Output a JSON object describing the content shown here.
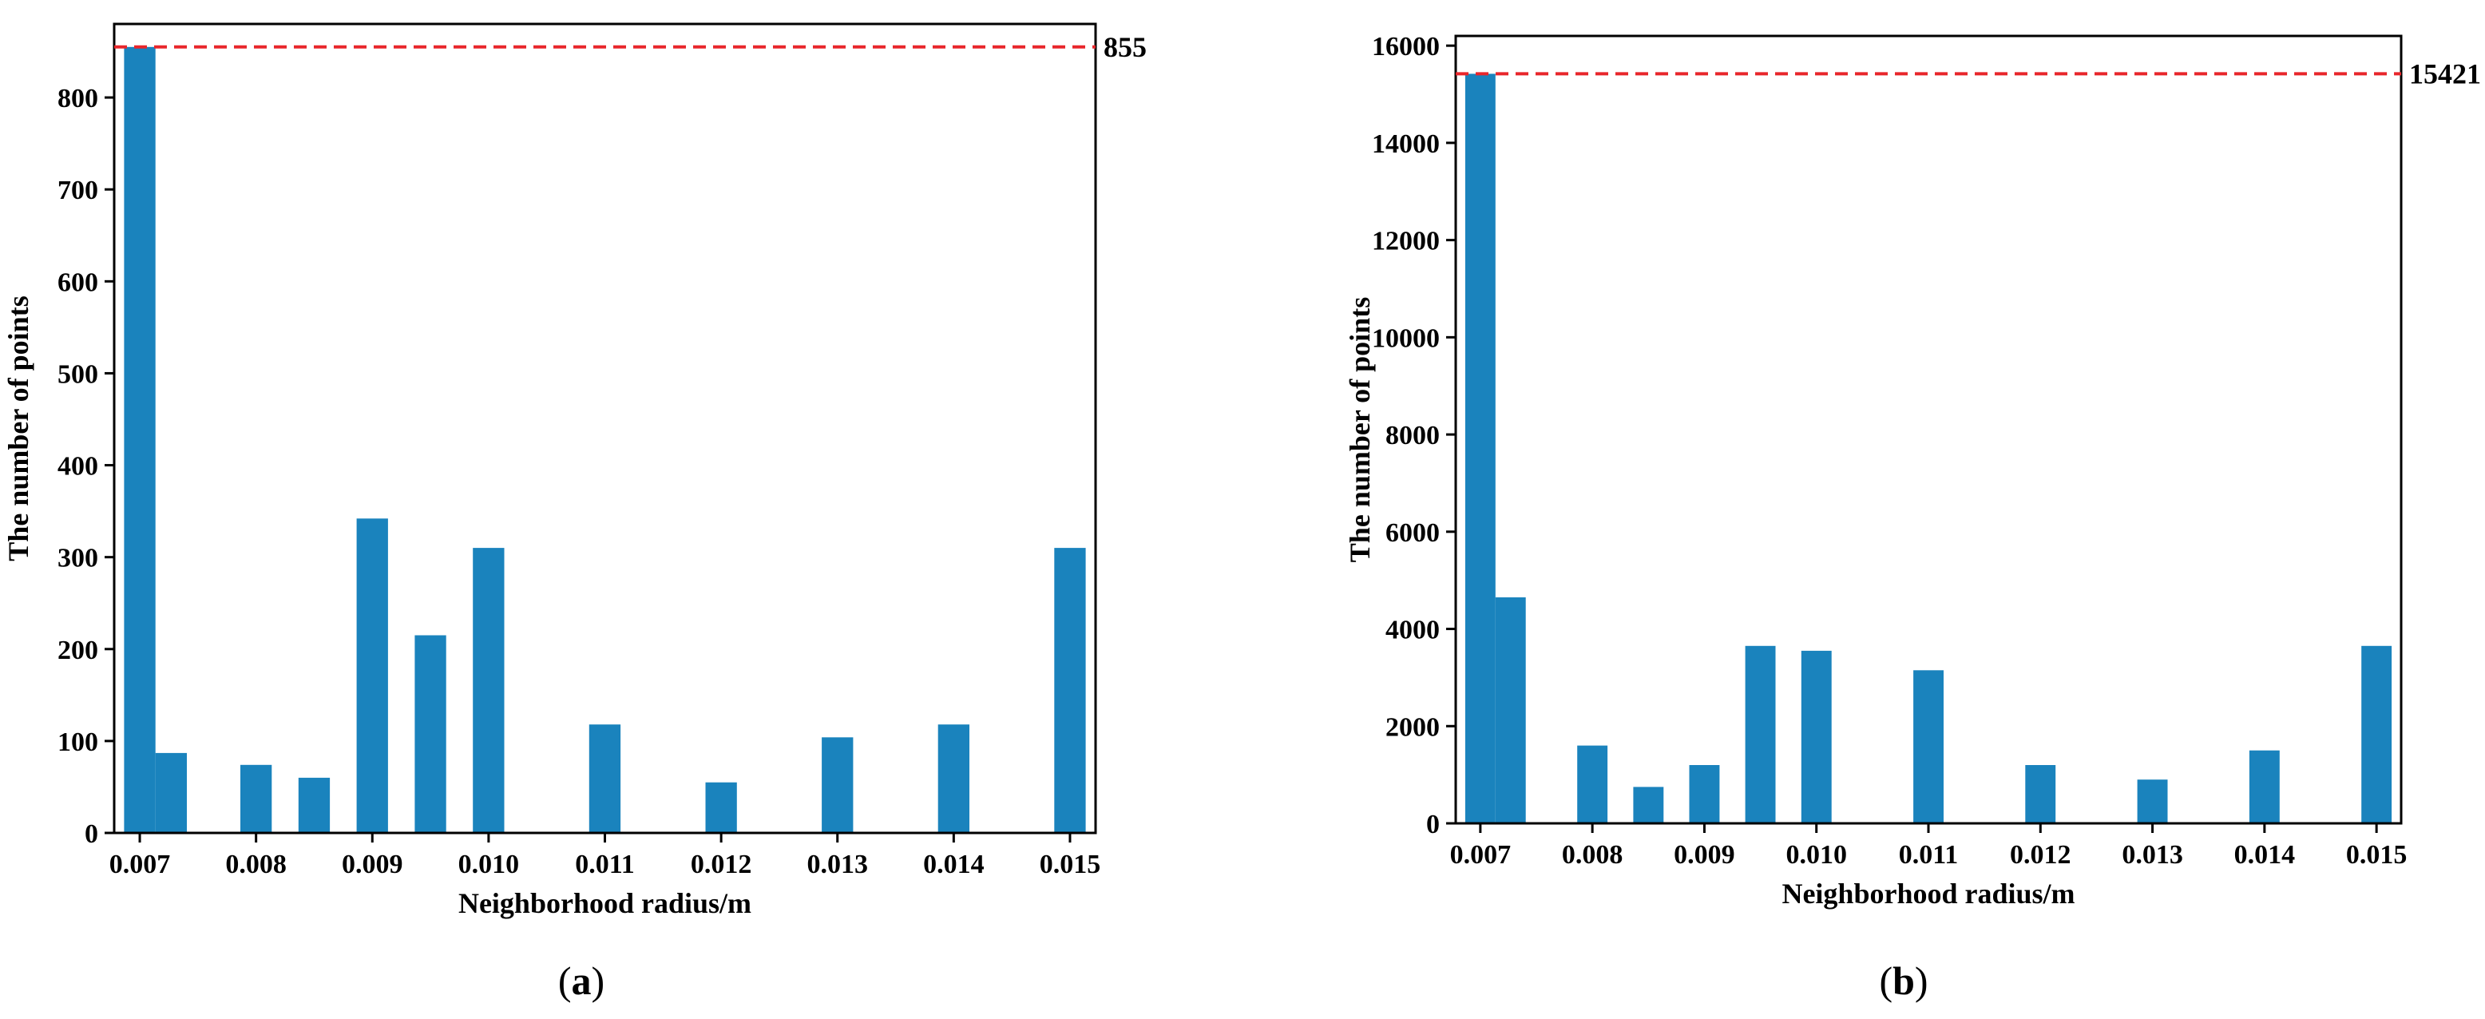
{
  "colors": {
    "bar": "#1a83bd",
    "reference_line": "#e8262b",
    "axis": "#000000"
  },
  "chart_data": [
    {
      "type": "bar",
      "panel_label": "a",
      "xlabel": "Neighborhood radius/m",
      "ylabel": "The number of points",
      "x_ticks": [
        "0.007",
        "0.008",
        "0.009",
        "0.010",
        "0.011",
        "0.012",
        "0.013",
        "0.014",
        "0.015"
      ],
      "x_tick_values": [
        0.007,
        0.008,
        0.009,
        0.01,
        0.011,
        0.012,
        0.013,
        0.014,
        0.015
      ],
      "xlim": [
        0.00678,
        0.01522
      ],
      "bar_width": 0.00027,
      "bars": [
        {
          "x": 0.007,
          "value": 855
        },
        {
          "x": 0.00727,
          "value": 87
        },
        {
          "x": 0.008,
          "value": 74
        },
        {
          "x": 0.0085,
          "value": 60
        },
        {
          "x": 0.009,
          "value": 342
        },
        {
          "x": 0.0095,
          "value": 215
        },
        {
          "x": 0.01,
          "value": 310
        },
        {
          "x": 0.011,
          "value": 118
        },
        {
          "x": 0.012,
          "value": 55
        },
        {
          "x": 0.013,
          "value": 104
        },
        {
          "x": 0.014,
          "value": 118
        },
        {
          "x": 0.015,
          "value": 310
        }
      ],
      "y_ticks": [
        0,
        100,
        200,
        300,
        400,
        500,
        600,
        700,
        800
      ],
      "ylim": [
        0,
        880
      ],
      "reference_line": {
        "value": 855,
        "label": "855",
        "style": "dashed"
      },
      "grid": false,
      "legend": "none"
    },
    {
      "type": "bar",
      "panel_label": "b",
      "xlabel": "Neighborhood radius/m",
      "ylabel": "The number of points",
      "x_ticks": [
        "0.007",
        "0.008",
        "0.009",
        "0.010",
        "0.011",
        "0.012",
        "0.013",
        "0.014",
        "0.015"
      ],
      "x_tick_values": [
        0.007,
        0.008,
        0.009,
        0.01,
        0.011,
        0.012,
        0.013,
        0.014,
        0.015
      ],
      "xlim": [
        0.00678,
        0.01522
      ],
      "bar_width": 0.00027,
      "bars": [
        {
          "x": 0.007,
          "value": 15421
        },
        {
          "x": 0.00727,
          "value": 4650
        },
        {
          "x": 0.008,
          "value": 1600
        },
        {
          "x": 0.0085,
          "value": 750
        },
        {
          "x": 0.009,
          "value": 1200
        },
        {
          "x": 0.0095,
          "value": 3650
        },
        {
          "x": 0.01,
          "value": 3550
        },
        {
          "x": 0.011,
          "value": 3150
        },
        {
          "x": 0.012,
          "value": 1200
        },
        {
          "x": 0.013,
          "value": 900
        },
        {
          "x": 0.014,
          "value": 1500
        },
        {
          "x": 0.015,
          "value": 3650
        }
      ],
      "y_ticks": [
        0,
        2000,
        4000,
        6000,
        8000,
        10000,
        12000,
        14000,
        16000
      ],
      "ylim": [
        0,
        16200
      ],
      "reference_line": {
        "value": 15421,
        "label": "15421",
        "style": "dashed"
      },
      "grid": false,
      "legend": "none"
    }
  ]
}
